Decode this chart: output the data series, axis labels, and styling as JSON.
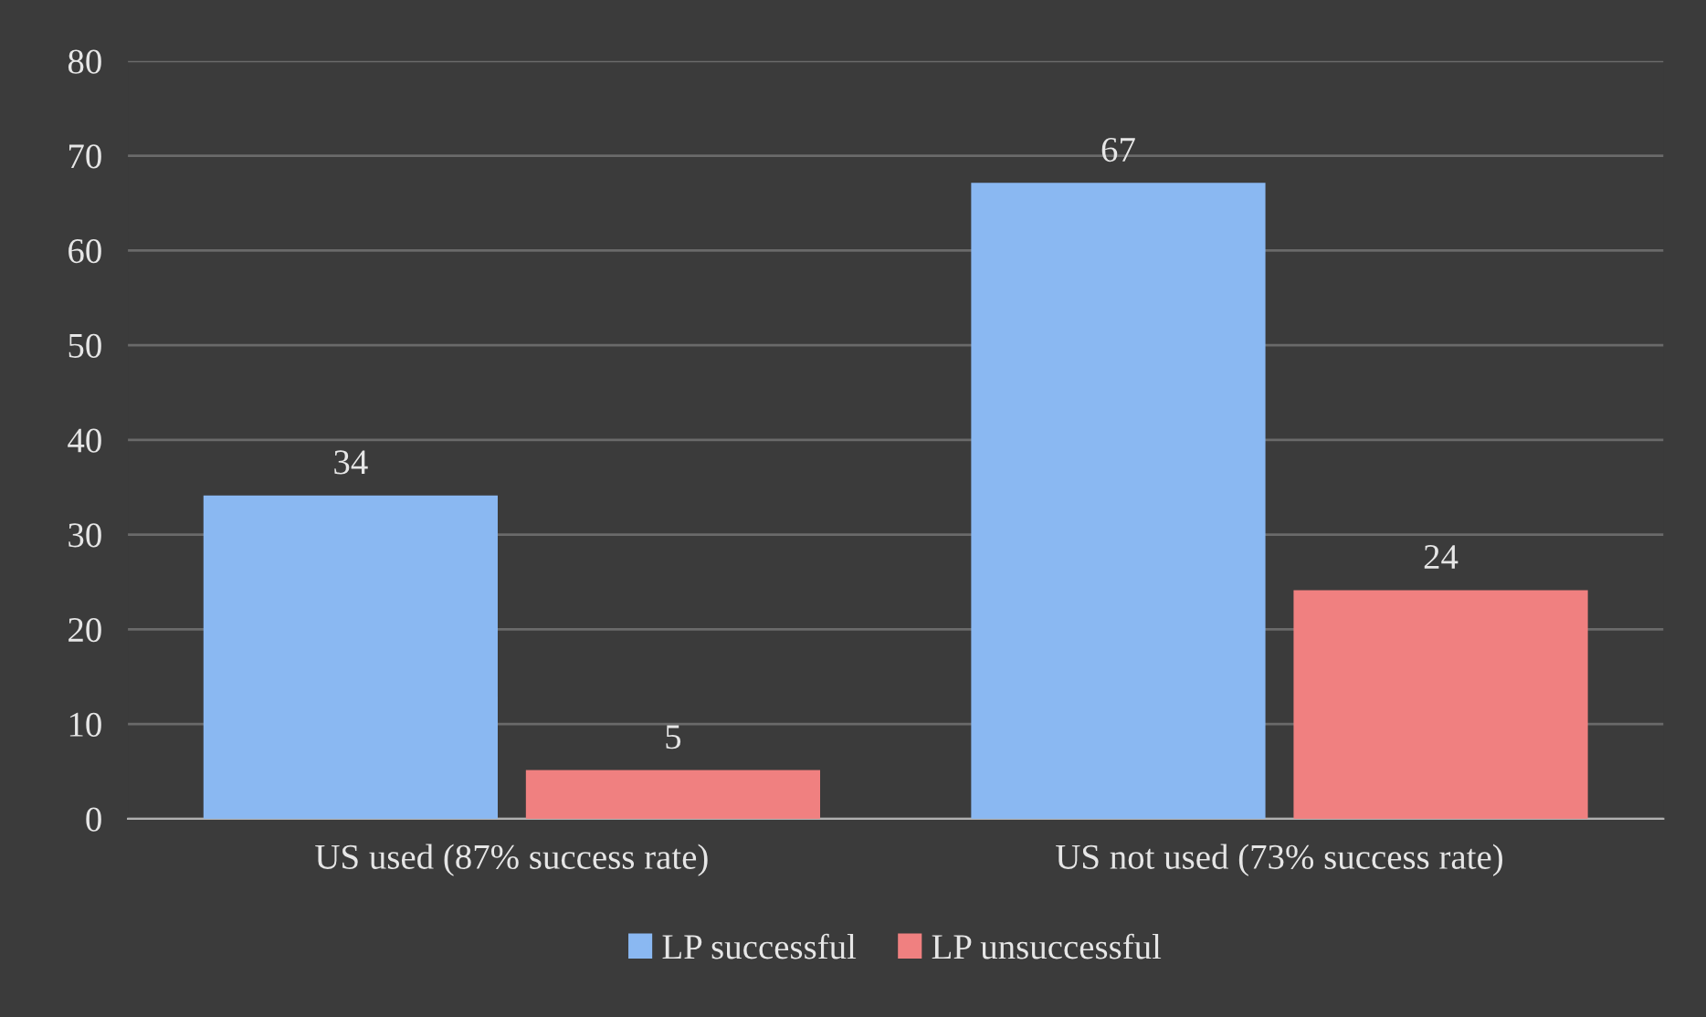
{
  "chart_data": {
    "type": "bar",
    "categories": [
      "US used (87% success rate)",
      "US not used (73% success rate)"
    ],
    "series": [
      {
        "name": "LP successful",
        "color": "#8ab8f2",
        "values": [
          34,
          67
        ]
      },
      {
        "name": "LP unsuccessful",
        "color": "#f08080",
        "values": [
          5,
          24
        ]
      }
    ],
    "ylim": [
      0,
      80
    ],
    "yticks": [
      0,
      10,
      20,
      30,
      40,
      50,
      60,
      70,
      80
    ],
    "grid": "y",
    "legend": "bottom",
    "data_labels": true
  }
}
